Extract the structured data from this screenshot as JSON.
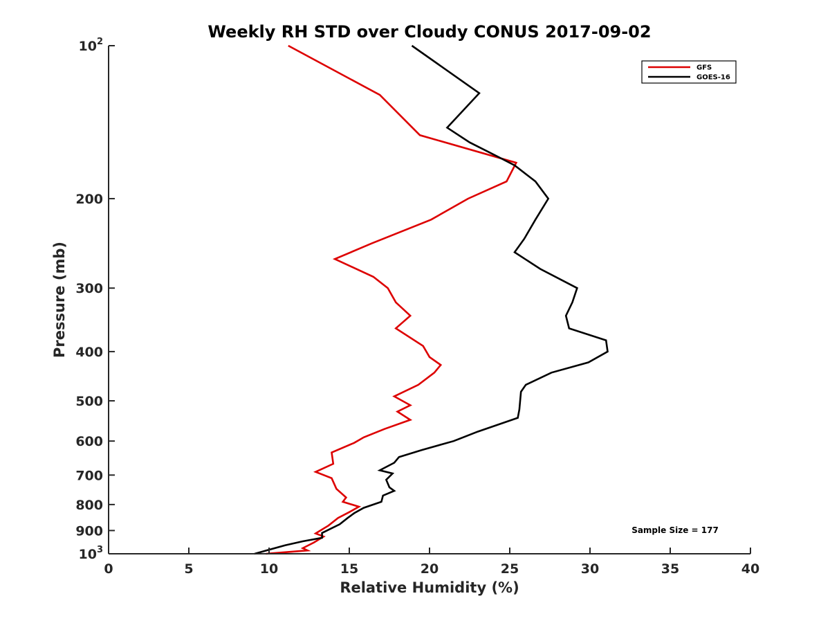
{
  "chart_data": {
    "type": "line",
    "title": "Weekly RH STD over Cloudy CONUS 2017-09-02",
    "xlabel": "Relative Humidity (%)",
    "ylabel": "Pressure (mb)",
    "xlim": [
      0,
      40
    ],
    "ylim": [
      100,
      1000
    ],
    "yscale": "log",
    "y_reversed": true,
    "xticks": [
      0,
      5,
      10,
      15,
      20,
      25,
      30,
      35,
      40
    ],
    "xtick_labels": [
      "0",
      "5",
      "10",
      "15",
      "20",
      "25",
      "30",
      "35",
      "40"
    ],
    "yticks": [
      100,
      200,
      300,
      400,
      500,
      600,
      700,
      800,
      900,
      1000
    ],
    "ytick_labels": [
      {
        "base": "10",
        "sup": "2"
      },
      {
        "base": "200"
      },
      {
        "base": "300"
      },
      {
        "base": "400"
      },
      {
        "base": "500"
      },
      {
        "base": "600"
      },
      {
        "base": "700"
      },
      {
        "base": "800"
      },
      {
        "base": "900"
      },
      {
        "base": "10",
        "sup": "3"
      }
    ],
    "grid": false,
    "legend_position": "top-right",
    "annotation": "Sample Size = 177",
    "series": [
      {
        "name": "GFS",
        "color": "#dd0000",
        "points": [
          [
            11.2,
            100
          ],
          [
            16.9,
            125
          ],
          [
            19.4,
            150
          ],
          [
            25.4,
            170
          ],
          [
            24.8,
            185
          ],
          [
            22.4,
            200
          ],
          [
            20.1,
            220
          ],
          [
            16.4,
            245
          ],
          [
            14.1,
            263
          ],
          [
            16.5,
            285
          ],
          [
            17.4,
            300
          ],
          [
            17.9,
            320
          ],
          [
            18.8,
            340
          ],
          [
            17.9,
            360
          ],
          [
            19.6,
            390
          ],
          [
            20.0,
            410
          ],
          [
            20.7,
            425
          ],
          [
            20.3,
            440
          ],
          [
            19.3,
            465
          ],
          [
            17.8,
            490
          ],
          [
            18.8,
            510
          ],
          [
            18.0,
            525
          ],
          [
            18.8,
            545
          ],
          [
            17.2,
            568
          ],
          [
            15.9,
            590
          ],
          [
            15.3,
            605
          ],
          [
            13.9,
            632
          ],
          [
            14.0,
            665
          ],
          [
            12.9,
            690
          ],
          [
            13.9,
            710
          ],
          [
            14.2,
            745
          ],
          [
            14.8,
            775
          ],
          [
            14.6,
            790
          ],
          [
            15.6,
            808
          ],
          [
            15.0,
            828
          ],
          [
            14.3,
            850
          ],
          [
            13.7,
            880
          ],
          [
            12.9,
            912
          ],
          [
            13.4,
            925
          ],
          [
            12.8,
            950
          ],
          [
            12.1,
            975
          ],
          [
            12.4,
            985
          ],
          [
            10.1,
            998
          ],
          [
            9.8,
            1000
          ]
        ]
      },
      {
        "name": "GOES-16",
        "color": "#000000",
        "points": [
          [
            18.9,
            100
          ],
          [
            23.1,
            124
          ],
          [
            21.1,
            145
          ],
          [
            22.5,
            155
          ],
          [
            24.2,
            165
          ],
          [
            25.3,
            172
          ],
          [
            26.6,
            185
          ],
          [
            27.4,
            200
          ],
          [
            26.6,
            220
          ],
          [
            25.9,
            240
          ],
          [
            25.3,
            255
          ],
          [
            26.9,
            275
          ],
          [
            29.2,
            300
          ],
          [
            28.9,
            320
          ],
          [
            28.5,
            340
          ],
          [
            28.7,
            360
          ],
          [
            31.0,
            380
          ],
          [
            31.1,
            400
          ],
          [
            29.9,
            420
          ],
          [
            27.6,
            440
          ],
          [
            26.0,
            465
          ],
          [
            25.7,
            480
          ],
          [
            25.6,
            520
          ],
          [
            25.5,
            540
          ],
          [
            23.0,
            575
          ],
          [
            21.5,
            600
          ],
          [
            19.5,
            625
          ],
          [
            18.1,
            645
          ],
          [
            17.8,
            662
          ],
          [
            16.9,
            685
          ],
          [
            17.7,
            695
          ],
          [
            17.3,
            715
          ],
          [
            17.5,
            740
          ],
          [
            17.8,
            752
          ],
          [
            17.1,
            768
          ],
          [
            17.0,
            790
          ],
          [
            15.9,
            812
          ],
          [
            15.3,
            832
          ],
          [
            14.9,
            850
          ],
          [
            14.4,
            875
          ],
          [
            13.3,
            910
          ],
          [
            13.3,
            930
          ],
          [
            12.1,
            945
          ],
          [
            11.0,
            962
          ],
          [
            9.1,
            1000
          ]
        ]
      }
    ]
  }
}
